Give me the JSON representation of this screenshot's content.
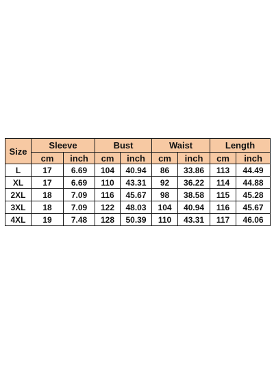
{
  "table": {
    "size_header": "Size",
    "groups": [
      "Sleeve",
      "Bust",
      "Waist",
      "Length"
    ],
    "units": [
      "cm",
      "inch"
    ],
    "rows": [
      {
        "size": "L",
        "values": [
          "17",
          "6.69",
          "104",
          "40.94",
          "86",
          "33.86",
          "113",
          "44.49"
        ]
      },
      {
        "size": "XL",
        "values": [
          "17",
          "6.69",
          "110",
          "43.31",
          "92",
          "36.22",
          "114",
          "44.88"
        ]
      },
      {
        "size": "2XL",
        "values": [
          "18",
          "7.09",
          "116",
          "45.67",
          "98",
          "38.58",
          "115",
          "45.28"
        ]
      },
      {
        "size": "3XL",
        "values": [
          "18",
          "7.09",
          "122",
          "48.03",
          "104",
          "40.94",
          "116",
          "45.67"
        ]
      },
      {
        "size": "4XL",
        "values": [
          "19",
          "7.48",
          "128",
          "50.39",
          "110",
          "43.31",
          "117",
          "46.06"
        ]
      }
    ],
    "header_color": "#f7c9a3"
  }
}
